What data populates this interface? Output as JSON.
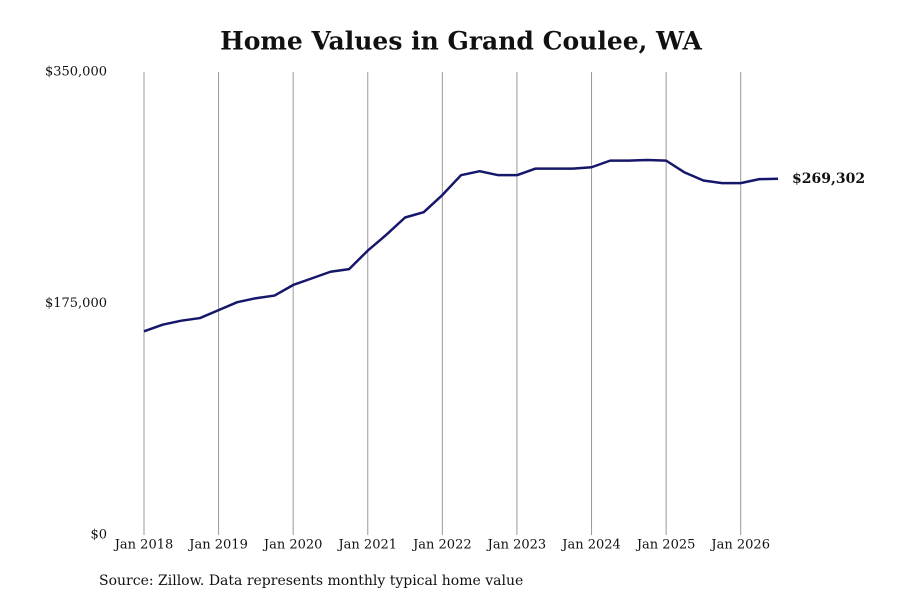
{
  "chart_data": {
    "type": "line",
    "title": "Home Values in Grand Coulee, WA",
    "source": "Source: Zillow. Data represents monthly typical home value",
    "x": [
      "2018-01",
      "2018-04",
      "2018-07",
      "2018-10",
      "2019-01",
      "2019-04",
      "2019-07",
      "2019-10",
      "2020-01",
      "2020-04",
      "2020-07",
      "2020-10",
      "2021-01",
      "2021-04",
      "2021-07",
      "2021-10",
      "2022-01",
      "2022-04",
      "2022-07",
      "2022-10",
      "2023-01",
      "2023-04",
      "2023-07",
      "2023-10",
      "2024-01",
      "2024-04",
      "2024-07",
      "2024-10",
      "2025-01",
      "2025-04",
      "2025-07",
      "2025-10",
      "2026-01",
      "2026-04",
      "2026-07"
    ],
    "series": [
      {
        "name": "Typical home value",
        "color": "#16166b",
        "values": [
          154000,
          159000,
          162000,
          164000,
          170000,
          176000,
          179000,
          181000,
          189000,
          194000,
          199000,
          201000,
          215000,
          227000,
          240000,
          244000,
          257000,
          272000,
          275000,
          272000,
          272000,
          277000,
          277000,
          277000,
          278000,
          283000,
          283000,
          283500,
          283000,
          274000,
          268000,
          266000,
          266000,
          269000,
          269302
        ],
        "value_labels": [
          null,
          null,
          null,
          null,
          null,
          null,
          null,
          null,
          null,
          null,
          null,
          null,
          null,
          null,
          null,
          null,
          null,
          null,
          null,
          null,
          null,
          null,
          null,
          null,
          null,
          null,
          null,
          null,
          null,
          null,
          null,
          null,
          null,
          null,
          "$269,302"
        ]
      }
    ],
    "xlim": [
      "2018-01",
      "2026-07"
    ],
    "xticks": [
      {
        "value": "2018-01",
        "label": "Jan 2018"
      },
      {
        "value": "2019-01",
        "label": "Jan 2019"
      },
      {
        "value": "2020-01",
        "label": "Jan 2020"
      },
      {
        "value": "2021-01",
        "label": "Jan 2021"
      },
      {
        "value": "2022-01",
        "label": "Jan 2022"
      },
      {
        "value": "2023-01",
        "label": "Jan 2023"
      },
      {
        "value": "2024-01",
        "label": "Jan 2024"
      },
      {
        "value": "2025-01",
        "label": "Jan 2025"
      },
      {
        "value": "2026-01",
        "label": "Jan 2026"
      }
    ],
    "ylim": [
      0,
      350000
    ],
    "yticks": [
      {
        "value": 0,
        "label": "$0"
      },
      {
        "value": 175000,
        "label": "$175,000"
      },
      {
        "value": 350000,
        "label": "$350,000"
      }
    ],
    "grid": "x"
  }
}
